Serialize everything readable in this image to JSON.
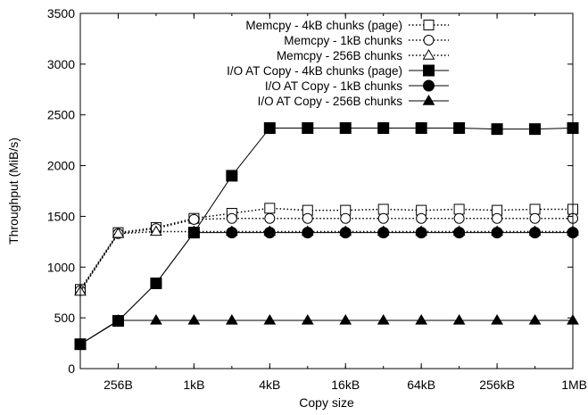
{
  "chart_data": {
    "type": "line",
    "xlabel": "Copy size",
    "ylabel": "Throughput (MiB/s)",
    "ylim": [
      0,
      3500
    ],
    "yticks": [
      0,
      500,
      1000,
      1500,
      2000,
      2500,
      3000,
      3500
    ],
    "x": [
      128,
      256,
      512,
      1024,
      2048,
      4096,
      8192,
      16384,
      32768,
      65536,
      131072,
      262144,
      524288,
      1048576
    ],
    "xscale": "log2",
    "xticks": [
      {
        "value": 256,
        "label": "256B"
      },
      {
        "value": 1024,
        "label": "1kB"
      },
      {
        "value": 4096,
        "label": "4kB"
      },
      {
        "value": 16384,
        "label": "16kB"
      },
      {
        "value": 65536,
        "label": "64kB"
      },
      {
        "value": 262144,
        "label": "256kB"
      },
      {
        "value": 1048576,
        "label": "1MB"
      }
    ],
    "legend_position": "top-right",
    "grid": false,
    "series": [
      {
        "name": "Memcpy - 4kB chunks (page)",
        "marker": "square-open",
        "line": "dotted",
        "values": [
          780,
          1340,
          1390,
          1480,
          1530,
          1580,
          1560,
          1560,
          1570,
          1560,
          1570,
          1560,
          1570,
          1570
        ]
      },
      {
        "name": "Memcpy - 1kB chunks",
        "marker": "circle-open",
        "line": "dotted",
        "values": [
          770,
          1330,
          1380,
          1470,
          1480,
          1480,
          1480,
          1480,
          1480,
          1480,
          1480,
          1480,
          1480,
          1480
        ]
      },
      {
        "name": "Memcpy - 256B chunks",
        "marker": "triangle-open",
        "line": "dotted",
        "values": [
          760,
          1330,
          1350,
          1350,
          1350,
          1350,
          1350,
          1350,
          1350,
          1350,
          1350,
          1350,
          1350,
          1350
        ]
      },
      {
        "name": "I/O AT Copy - 4kB chunks (page)",
        "marker": "square-filled",
        "line": "solid",
        "values": [
          240,
          470,
          840,
          1340,
          1900,
          2370,
          2370,
          2370,
          2370,
          2370,
          2370,
          2360,
          2360,
          2370
        ]
      },
      {
        "name": "I/O AT Copy - 1kB chunks",
        "marker": "circle-filled",
        "line": "solid",
        "values": [
          240,
          470,
          840,
          1340,
          1340,
          1340,
          1340,
          1340,
          1340,
          1340,
          1340,
          1340,
          1340,
          1340
        ]
      },
      {
        "name": "I/O AT Copy - 256B chunks",
        "marker": "triangle-filled",
        "line": "solid",
        "values": [
          240,
          475,
          475,
          475,
          475,
          475,
          475,
          475,
          475,
          475,
          475,
          475,
          475,
          475
        ]
      }
    ]
  }
}
